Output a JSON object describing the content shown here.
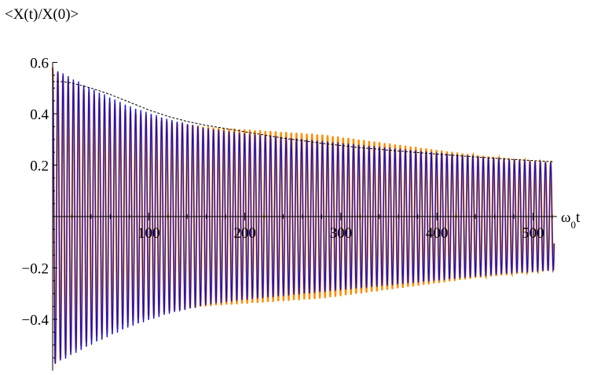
{
  "chart_data": {
    "type": "line",
    "ylabel": "<X(t)/X(0)>",
    "xlabel": "ω0t",
    "xlabel_parts": {
      "base": "ω",
      "sub": "0",
      "tail": "t"
    },
    "xlim": [
      0,
      525
    ],
    "ylim": [
      -0.6,
      0.6
    ],
    "x_ticks": [
      100,
      200,
      300,
      400,
      500
    ],
    "x_tick_labels": [
      "100",
      "200",
      "300",
      "400",
      "500"
    ],
    "y_ticks": [
      -0.4,
      -0.2,
      0.2,
      0.4,
      0.6
    ],
    "y_tick_labels": [
      "−0.4",
      "−0.2",
      "0.2",
      "0.4",
      "0.6"
    ],
    "grid": false,
    "oscillation_period": 5.4,
    "series": [
      {
        "role": "oscillation-orange",
        "color": "#ff8c00",
        "t_end": 522,
        "envelope_x": [
          0,
          10,
          40,
          80,
          120,
          160,
          200,
          240,
          280,
          320,
          360,
          400,
          440,
          480,
          522
        ],
        "envelope_y": [
          0.58,
          0.55,
          0.48,
          0.41,
          0.37,
          0.35,
          0.34,
          0.33,
          0.32,
          0.3,
          0.28,
          0.26,
          0.24,
          0.225,
          0.21
        ]
      },
      {
        "role": "oscillation-blue",
        "color": "#1a10c8",
        "t_end": 522,
        "envelope_x": [
          0,
          10,
          40,
          80,
          120,
          160,
          200,
          240,
          280,
          320,
          360,
          400,
          440,
          480,
          522
        ],
        "envelope_y": [
          0.58,
          0.56,
          0.5,
          0.43,
          0.38,
          0.345,
          0.325,
          0.31,
          0.295,
          0.28,
          0.265,
          0.25,
          0.235,
          0.22,
          0.21
        ]
      },
      {
        "role": "envelope-dashed",
        "color": "#000000",
        "x": [
          0,
          10,
          20,
          40,
          60,
          80,
          100,
          120,
          140,
          160,
          200,
          240,
          280,
          320,
          360,
          400,
          440,
          480,
          522
        ],
        "y": [
          0.525,
          0.525,
          0.52,
          0.5,
          0.475,
          0.445,
          0.415,
          0.39,
          0.37,
          0.355,
          0.33,
          0.305,
          0.285,
          0.268,
          0.255,
          0.243,
          0.232,
          0.222,
          0.213
        ]
      }
    ]
  }
}
